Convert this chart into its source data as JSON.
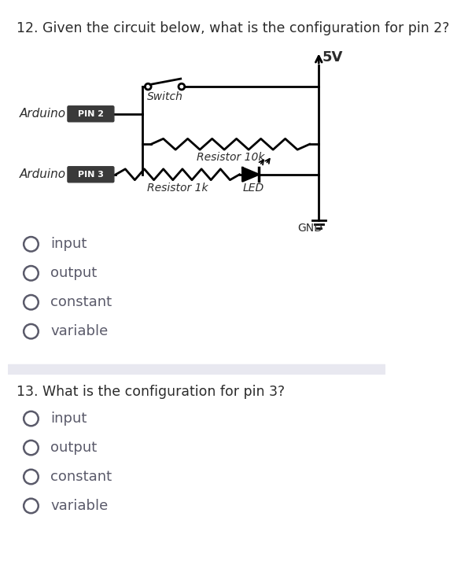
{
  "q12_text": "12. Given the circuit below, what is the configuration for pin 2?",
  "q13_text": "13. What is the configuration for pin 3?",
  "q12_options": [
    "input",
    "output",
    "constant",
    "variable"
  ],
  "q13_options": [
    "input",
    "output",
    "constant",
    "variable"
  ],
  "bg_color": "#ffffff",
  "text_color": "#2c2c2c",
  "option_color": "#5a5a6a",
  "divider_color": "#e8e8f0",
  "circuit": {
    "5v_label": "5V",
    "switch_label": "Switch",
    "pin2_label": "Arduino",
    "pin2_tag": "PIN 2",
    "pin3_label": "Arduino",
    "pin3_tag": "PIN 3",
    "r10k_label": "Resistor 10k",
    "r1k_label": "Resistor 1k",
    "led_label": "LED",
    "gnd_label": "GND"
  }
}
